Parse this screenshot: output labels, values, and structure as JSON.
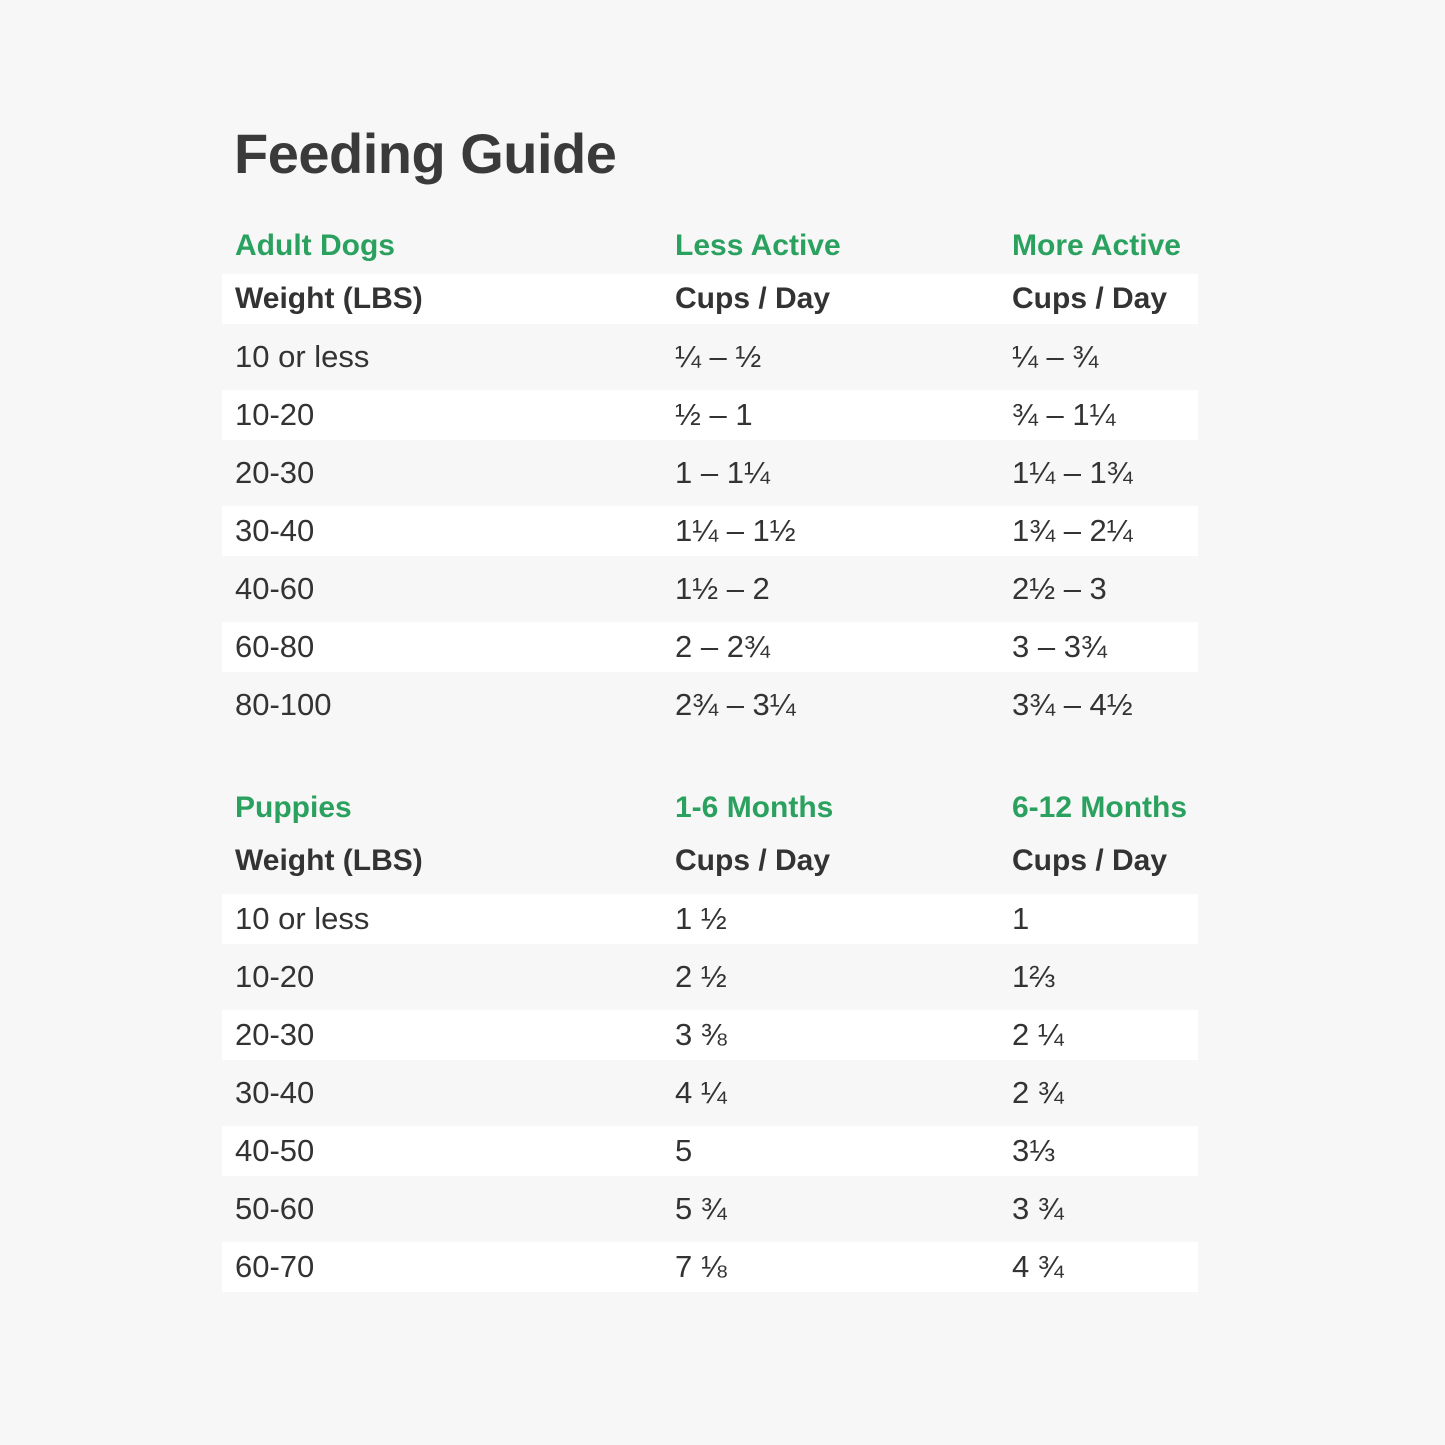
{
  "title": "Feeding Guide",
  "colors": {
    "accent_green": "#2aa15e",
    "text_dark": "#3a3a3a",
    "page_background": "#f7f7f7",
    "row_highlight": "#ffffff"
  },
  "adult_table": {
    "section_title": "Adult Dogs",
    "col2_title": "Less Active",
    "col3_title": "More Active",
    "headers": [
      "Weight (LBS)",
      "Cups / Day",
      "Cups / Day"
    ],
    "rows": [
      [
        "10 or less",
        "¼ – ½",
        "¼ – ¾"
      ],
      [
        "10-20",
        "½ – 1",
        "¾ – 1¼"
      ],
      [
        "20-30",
        "1 – 1¼",
        "1¼ – 1¾"
      ],
      [
        "30-40",
        "1¼ – 1½",
        "1¾ – 2¼"
      ],
      [
        "40-60",
        "1½ – 2",
        "2½ – 3"
      ],
      [
        "60-80",
        "2 – 2¾",
        "3 – 3¾"
      ],
      [
        "80-100",
        "2¾ – 3¼",
        "3¾ – 4½"
      ]
    ]
  },
  "puppy_table": {
    "section_title": "Puppies",
    "col2_title": "1-6 Months",
    "col3_title": "6-12 Months",
    "headers": [
      "Weight (LBS)",
      "Cups / Day",
      "Cups / Day"
    ],
    "rows": [
      [
        "10 or less",
        "1 ½",
        "1"
      ],
      [
        "10-20",
        "2 ½",
        "1⅔"
      ],
      [
        "20-30",
        "3 ⅜",
        "2 ¼"
      ],
      [
        "30-40",
        "4 ¼",
        "2 ¾"
      ],
      [
        "40-50",
        "5",
        "3⅓"
      ],
      [
        "50-60",
        "5 ¾",
        "3 ¾"
      ],
      [
        "60-70",
        "7 ⅛",
        "4 ¾"
      ]
    ]
  }
}
